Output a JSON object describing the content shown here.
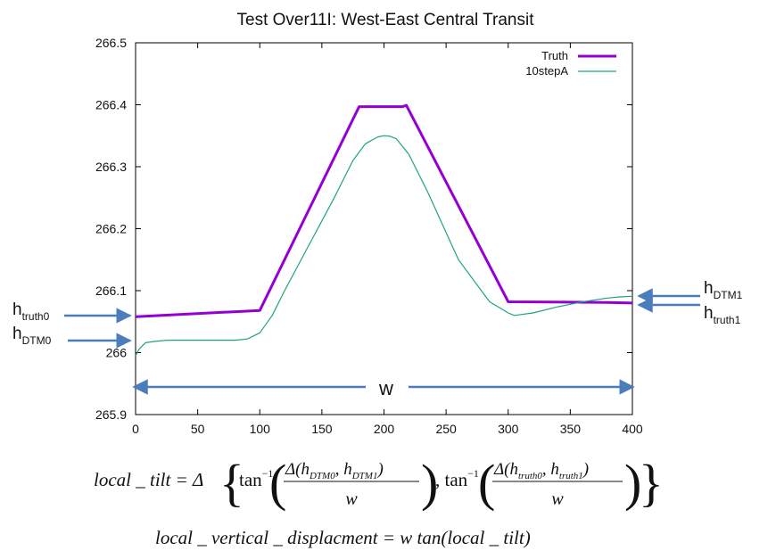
{
  "chart_data": {
    "type": "line",
    "title": "Test Over11I: West-East Central Transit",
    "xlabel": "",
    "ylabel": "",
    "xlim": [
      0,
      400
    ],
    "ylim": [
      265.9,
      266.5
    ],
    "x_ticks": [
      "0",
      "50",
      "100",
      "150",
      "200",
      "250",
      "300",
      "350",
      "400"
    ],
    "y_ticks": [
      "265.9",
      "266",
      "266.1",
      "266.2",
      "266.3",
      "266.4",
      "266.5"
    ],
    "grid": false,
    "legend": "top-right",
    "series": [
      {
        "name": "Truth",
        "color": "#9400d3",
        "x": [
          0,
          100,
          180,
          190,
          215,
          218,
          300,
          380,
          400
        ],
        "y": [
          266.058,
          266.068,
          266.397,
          266.397,
          266.397,
          266.399,
          266.082,
          266.081,
          266.08
        ]
      },
      {
        "name": "10stepA",
        "color": "#1fa37f",
        "x": [
          0,
          3,
          8,
          15,
          25,
          50,
          80,
          90,
          100,
          110,
          120,
          140,
          160,
          175,
          185,
          195,
          200,
          205,
          210,
          220,
          235,
          260,
          285,
          300,
          305,
          320,
          340,
          360,
          380,
          390,
          400
        ],
        "y": [
          265.995,
          266.006,
          266.016,
          266.018,
          266.02,
          266.02,
          266.02,
          266.022,
          266.032,
          266.06,
          266.1,
          266.175,
          266.25,
          266.31,
          266.337,
          266.348,
          266.35,
          266.349,
          266.345,
          266.32,
          266.26,
          266.15,
          266.082,
          266.064,
          266.06,
          266.064,
          266.074,
          266.082,
          266.088,
          266.09,
          266.091
        ]
      }
    ]
  },
  "annotations": {
    "h_truth0": {
      "base": "h",
      "sub": "truth0"
    },
    "h_dtm0": {
      "base": "h",
      "sub": "DTM0"
    },
    "h_dtm1": {
      "base": "h",
      "sub": "DTM1"
    },
    "h_truth1": {
      "base": "h",
      "sub": "truth1"
    },
    "w_label": "w",
    "arrow_color": "#4a7ebb"
  },
  "formulas": {
    "local_tilt": {
      "lhs": "local _ tilt = Δ",
      "tan_inv": "tan",
      "inv_exp": "−1",
      "num1": "Δ(h",
      "num1_sub_a": "DTM0",
      "num1_mid": ", h",
      "num1_sub_b": "DTM1",
      "num1_end": ")",
      "num2": "Δ(h",
      "num2_sub_a": "truth0",
      "num2_mid": ", h",
      "num2_sub_b": "truth1",
      "num2_end": ")",
      "den": "w",
      "comma": ", tan"
    },
    "local_vertical_displacement": "local _ vertical _ displacment = w tan(local _ tilt)"
  }
}
